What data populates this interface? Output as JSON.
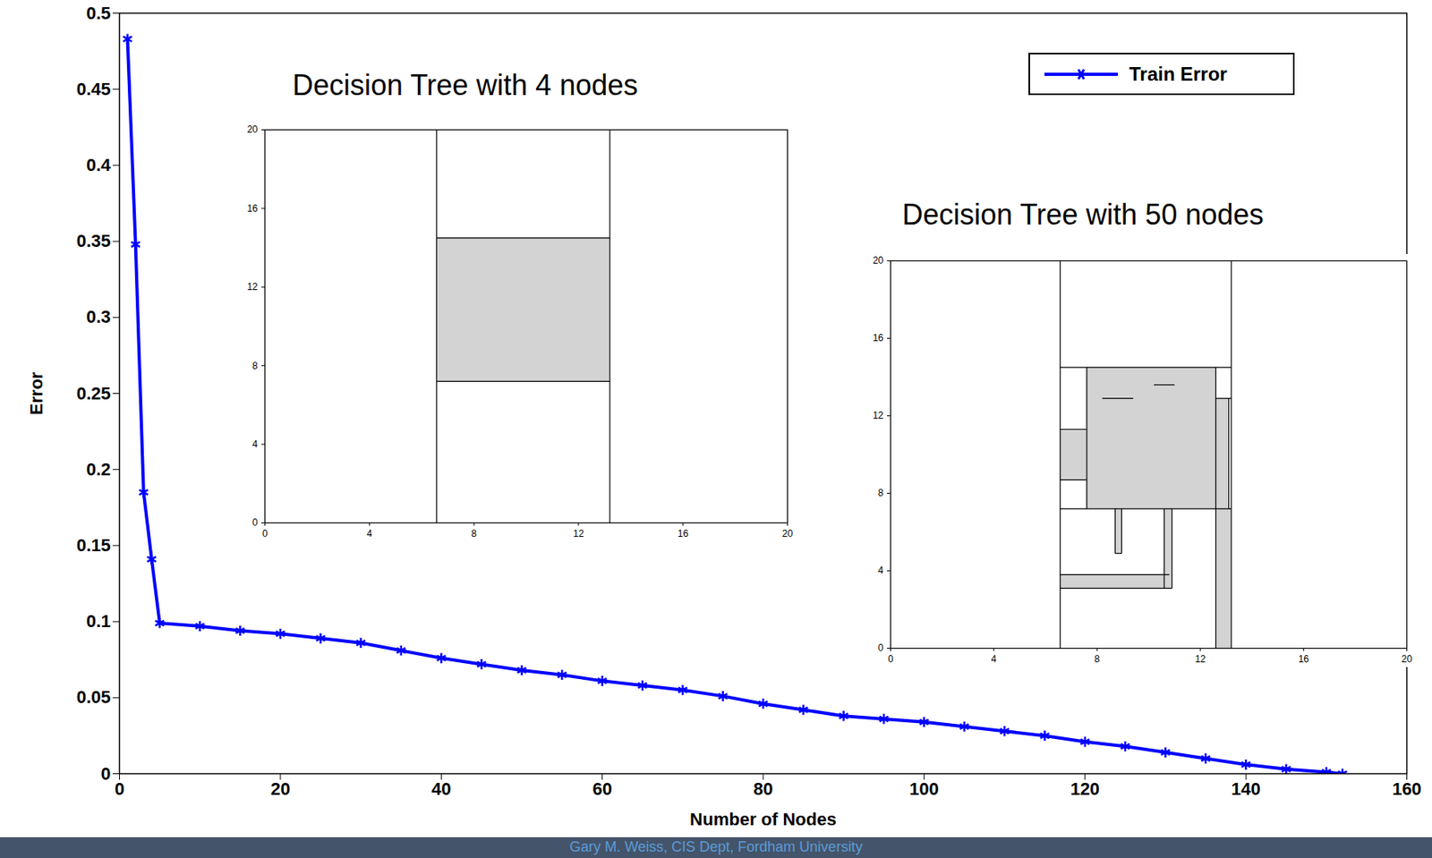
{
  "chart_data": [
    {
      "type": "line",
      "xlabel": "Number of Nodes",
      "ylabel": "Error",
      "xlim": [
        0,
        160
      ],
      "xticks": [
        0,
        20,
        40,
        60,
        80,
        100,
        120,
        140,
        160
      ],
      "ylim": [
        0,
        0.5
      ],
      "yticks": [
        0,
        0.05,
        0.1,
        0.15,
        0.2,
        0.25,
        0.3,
        0.35,
        0.4,
        0.45,
        0.5
      ],
      "legend": "top-right",
      "x": [
        1,
        2,
        3,
        4,
        5,
        10,
        15,
        20,
        25,
        30,
        35,
        40,
        45,
        50,
        55,
        60,
        65,
        70,
        75,
        80,
        85,
        90,
        95,
        100,
        105,
        110,
        115,
        120,
        125,
        130,
        135,
        140,
        145,
        150,
        152
      ],
      "series": [
        {
          "name": "Train Error",
          "color": "#0000ff",
          "marker": "asterisk",
          "line_style": "solid",
          "values": [
            0.483,
            0.348,
            0.185,
            0.141,
            0.099,
            0.097,
            0.094,
            0.092,
            0.089,
            0.086,
            0.081,
            0.076,
            0.072,
            0.068,
            0.065,
            0.061,
            0.058,
            0.055,
            0.051,
            0.046,
            0.042,
            0.038,
            0.036,
            0.034,
            0.031,
            0.028,
            0.025,
            0.021,
            0.018,
            0.014,
            0.01,
            0.006,
            0.003,
            0.001,
            0
          ]
        }
      ]
    },
    {
      "type": "decision_regions",
      "title": "Decision Tree with 4 nodes",
      "xlim": [
        0,
        20
      ],
      "xticks": [
        0,
        4,
        8,
        12,
        16,
        20
      ],
      "ylim": [
        0,
        20
      ],
      "yticks": [
        0,
        4,
        8,
        12,
        16,
        20
      ],
      "color": "#d3d3d3",
      "regions": [
        [
          6.57,
          13.2,
          7.2,
          14.5
        ]
      ],
      "boundaries": [
        [
          6.57,
          0,
          6.57,
          20
        ],
        [
          13.2,
          0,
          13.2,
          20
        ],
        [
          6.57,
          7.2,
          13.2,
          7.2
        ],
        [
          6.57,
          14.5,
          13.2,
          14.5
        ]
      ]
    },
    {
      "type": "decision_regions",
      "title": "Decision Tree with 50 nodes",
      "xlim": [
        0,
        20
      ],
      "xticks": [
        0,
        4,
        8,
        12,
        16,
        20
      ],
      "ylim": [
        0,
        20
      ],
      "yticks": [
        0,
        4,
        8,
        12,
        16,
        20
      ],
      "color": "#d3d3d3",
      "regions": [
        [
          7.6,
          12.6,
          7.2,
          14.5
        ],
        [
          6.57,
          7.6,
          8.7,
          11.3
        ],
        [
          12.6,
          13.2,
          0,
          7.2
        ],
        [
          6.57,
          10.8,
          3.1,
          3.8
        ],
        [
          10.6,
          10.9,
          3.1,
          7.2
        ],
        [
          8.7,
          8.95,
          4.9,
          7.2
        ],
        [
          12.6,
          13.1,
          7.2,
          12.9
        ],
        [
          8.2,
          9.4,
          12.9,
          14.5
        ],
        [
          10.2,
          11.0,
          13.6,
          14.5
        ]
      ],
      "boundaries": [
        [
          6.57,
          0,
          6.57,
          20
        ],
        [
          13.2,
          0,
          13.2,
          20
        ],
        [
          6.57,
          7.2,
          13.2,
          7.2
        ],
        [
          6.57,
          14.5,
          13.2,
          14.5
        ],
        [
          7.6,
          7.2,
          7.6,
          14.5
        ],
        [
          12.6,
          0,
          12.6,
          14.5
        ],
        [
          6.57,
          3.1,
          10.9,
          3.1
        ],
        [
          6.57,
          3.8,
          10.8,
          3.8
        ],
        [
          10.6,
          3.1,
          10.6,
          7.2
        ],
        [
          10.9,
          3.1,
          10.9,
          7.2
        ],
        [
          8.7,
          4.9,
          8.7,
          7.2
        ],
        [
          8.95,
          4.9,
          8.95,
          7.2
        ],
        [
          8.7,
          4.9,
          8.95,
          4.9
        ],
        [
          6.57,
          8.7,
          7.6,
          8.7
        ],
        [
          6.57,
          11.3,
          7.6,
          11.3
        ],
        [
          13.1,
          7.2,
          13.1,
          12.9
        ],
        [
          12.6,
          12.9,
          13.2,
          12.9
        ],
        [
          8.2,
          12.9,
          9.4,
          12.9
        ],
        [
          10.2,
          13.6,
          11.0,
          13.6
        ]
      ]
    }
  ],
  "footer": "Gary M. Weiss, CIS Dept, Fordham University"
}
